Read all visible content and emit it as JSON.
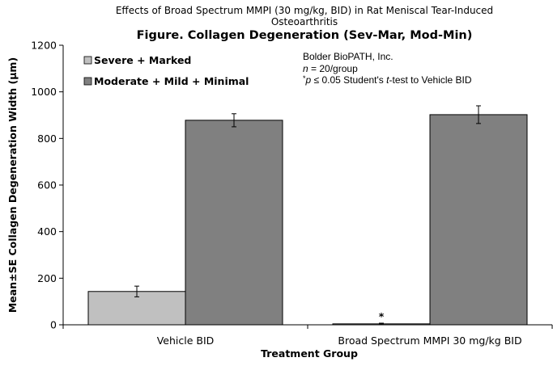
{
  "chart_data": {
    "type": "bar",
    "supertitle_lines": [
      "Effects of Broad Spectrum MMPI (30 mg/kg, BID) in Rat Meniscal Tear-Induced",
      "Osteoarthritis"
    ],
    "title": "Figure. Collagen Degeneration (Sev-Mar, Mod-Min)",
    "xlabel": "Treatment Group",
    "ylabel": "Mean±SE Collagen Degeneration Width (µm)",
    "ylim": [
      0,
      1200
    ],
    "yticks": [
      0,
      200,
      400,
      600,
      800,
      1000,
      1200
    ],
    "grid": false,
    "legend_placement": "top-left",
    "categories": [
      "Vehicle BID",
      "Broad Spectrum MMPI 30 mg/kg BID"
    ],
    "series": [
      {
        "name": "Severe + Marked",
        "color": "#c0c0c0",
        "values": [
          143,
          4
        ],
        "errors": [
          23,
          3
        ]
      },
      {
        "name": "Moderate + Mild + Minimal",
        "color": "#808080",
        "values": [
          878,
          902
        ],
        "errors": [
          28,
          38
        ]
      }
    ],
    "significance": [
      {
        "series": 0,
        "category": 1,
        "label": "*"
      }
    ],
    "notes": {
      "lab": "Bolder BioPATH, Inc.",
      "n_italic": "n",
      "n_rest": " = 20/group",
      "p_star": "*",
      "p_italic": "p",
      "p_mid": " ≤ 0.05 Student's ",
      "t_italic": "t",
      "p_end": "-test to Vehicle BID"
    }
  }
}
